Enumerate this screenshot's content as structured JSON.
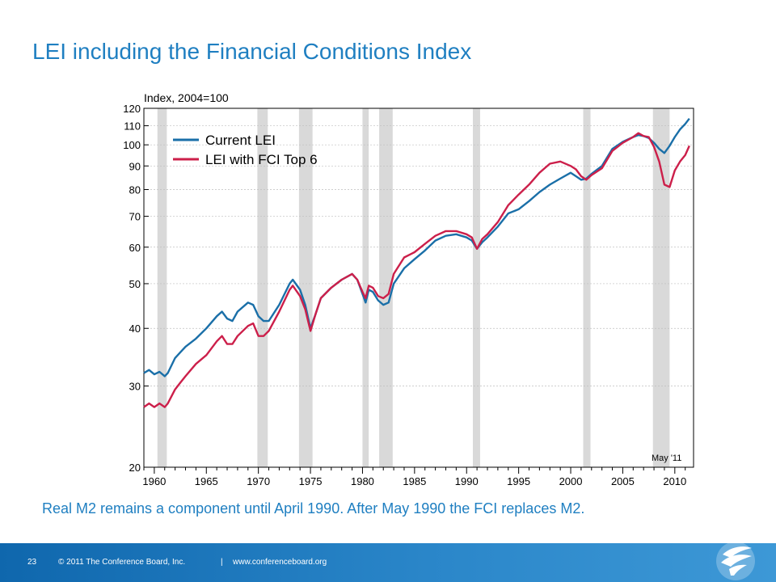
{
  "slide": {
    "title": "LEI including the Financial Conditions Index",
    "caption": "Real M2 remains a component until April 1990. After May 1990 the FCI replaces M2."
  },
  "footer": {
    "page_number": "23",
    "copyright": "© 2011 The Conference Board, Inc.",
    "separator": "|",
    "url": "www.conferenceboard.org"
  },
  "colors": {
    "accent": "#1f7fc1",
    "current_lei": "#1a6fa8",
    "lei_fci": "#cc1f4a",
    "recession": "#d9d9d9"
  },
  "chart_data": {
    "type": "line",
    "ylabel": "Index, 2004=100",
    "y_scale": "log",
    "ylim": [
      20,
      120
    ],
    "xlim": [
      1959,
      2011.8
    ],
    "y_ticks": [
      20,
      30,
      40,
      50,
      60,
      70,
      80,
      90,
      100,
      110,
      120
    ],
    "x_ticks": [
      1960,
      1965,
      1970,
      1975,
      1980,
      1985,
      1990,
      1995,
      2000,
      2005,
      2010
    ],
    "annotation": "May '11",
    "legend_position": "top-left",
    "recessions": [
      [
        1960.3,
        1961.2
      ],
      [
        1969.9,
        1970.9
      ],
      [
        1973.9,
        1975.2
      ],
      [
        1980.0,
        1980.6
      ],
      [
        1981.6,
        1982.9
      ],
      [
        1990.6,
        1991.3
      ],
      [
        2001.2,
        2001.9
      ],
      [
        2007.9,
        2009.5
      ]
    ],
    "series": [
      {
        "name": "Current LEI",
        "color": "#1a6fa8",
        "x": [
          1959.0,
          1959.5,
          1960.0,
          1960.5,
          1961.0,
          1961.3,
          1962.0,
          1962.5,
          1963.0,
          1964.0,
          1965.0,
          1966.0,
          1966.5,
          1967.0,
          1967.5,
          1968.0,
          1969.0,
          1969.5,
          1970.0,
          1970.5,
          1971.0,
          1972.0,
          1973.0,
          1973.3,
          1974.0,
          1974.5,
          1975.0,
          1975.5,
          1976.0,
          1977.0,
          1978.0,
          1979.0,
          1979.5,
          1980.0,
          1980.3,
          1980.6,
          1981.0,
          1981.5,
          1982.0,
          1982.5,
          1983.0,
          1984.0,
          1985.0,
          1986.0,
          1987.0,
          1988.0,
          1989.0,
          1990.0,
          1990.5,
          1991.0,
          1991.5,
          1992.0,
          1993.0,
          1994.0,
          1995.0,
          1996.0,
          1997.0,
          1998.0,
          1999.0,
          2000.0,
          2000.5,
          2001.0,
          2001.5,
          2002.0,
          2003.0,
          2004.0,
          2005.0,
          2006.0,
          2006.5,
          2007.0,
          2007.5,
          2008.0,
          2008.5,
          2009.0,
          2009.5,
          2010.0,
          2010.5,
          2011.0,
          2011.4
        ],
        "values": [
          32.0,
          32.5,
          31.8,
          32.2,
          31.5,
          32.0,
          34.5,
          35.5,
          36.5,
          38.0,
          40.0,
          42.5,
          43.5,
          42.0,
          41.5,
          43.5,
          45.5,
          45.0,
          42.5,
          41.5,
          41.5,
          45.0,
          50.0,
          51.0,
          48.5,
          45.0,
          40.0,
          43.0,
          46.5,
          49.0,
          51.0,
          52.5,
          51.0,
          47.5,
          45.5,
          48.5,
          48.0,
          46.0,
          45.0,
          45.5,
          50.0,
          54.0,
          56.5,
          59.0,
          62.0,
          63.5,
          64.0,
          63.0,
          62.0,
          59.5,
          61.5,
          63.0,
          66.5,
          71.0,
          72.5,
          75.5,
          79.0,
          82.0,
          84.5,
          87.0,
          85.5,
          84.0,
          84.5,
          86.5,
          90.0,
          98.0,
          101.5,
          104.0,
          105.0,
          104.5,
          103.5,
          101.0,
          98.0,
          96.0,
          99.5,
          104.0,
          108.0,
          111.0,
          114.0
        ]
      },
      {
        "name": "LEI with FCI Top 6",
        "color": "#cc1f4a",
        "x": [
          1959.0,
          1959.5,
          1960.0,
          1960.5,
          1961.0,
          1961.3,
          1962.0,
          1962.5,
          1963.0,
          1964.0,
          1965.0,
          1966.0,
          1966.5,
          1967.0,
          1967.5,
          1968.0,
          1969.0,
          1969.5,
          1970.0,
          1970.5,
          1971.0,
          1972.0,
          1973.0,
          1973.3,
          1974.0,
          1974.5,
          1975.0,
          1975.5,
          1976.0,
          1977.0,
          1978.0,
          1979.0,
          1979.5,
          1980.0,
          1980.3,
          1980.6,
          1981.0,
          1981.5,
          1982.0,
          1982.5,
          1983.0,
          1984.0,
          1985.0,
          1986.0,
          1987.0,
          1988.0,
          1989.0,
          1990.0,
          1990.5,
          1991.0,
          1991.5,
          1992.0,
          1993.0,
          1994.0,
          1995.0,
          1996.0,
          1997.0,
          1998.0,
          1999.0,
          2000.0,
          2000.5,
          2001.0,
          2001.5,
          2002.0,
          2003.0,
          2004.0,
          2005.0,
          2006.0,
          2006.5,
          2007.0,
          2007.5,
          2008.0,
          2008.5,
          2009.0,
          2009.5,
          2010.0,
          2010.5,
          2011.0,
          2011.4
        ],
        "values": [
          27.0,
          27.5,
          27.0,
          27.5,
          27.0,
          27.5,
          29.5,
          30.5,
          31.5,
          33.5,
          35.0,
          37.5,
          38.5,
          37.0,
          37.0,
          38.5,
          40.5,
          41.0,
          38.5,
          38.5,
          39.5,
          43.5,
          48.5,
          49.5,
          47.0,
          44.0,
          39.5,
          43.0,
          46.5,
          49.0,
          51.0,
          52.5,
          51.0,
          48.0,
          46.5,
          49.5,
          49.0,
          47.0,
          46.5,
          47.5,
          52.5,
          57.0,
          58.5,
          61.0,
          63.5,
          65.0,
          65.0,
          64.0,
          63.0,
          59.5,
          62.5,
          64.0,
          68.0,
          74.0,
          78.0,
          82.0,
          87.0,
          91.0,
          92.0,
          90.0,
          88.5,
          85.5,
          84.0,
          86.0,
          89.0,
          97.0,
          101.0,
          104.0,
          106.0,
          104.5,
          104.0,
          99.0,
          92.0,
          82.0,
          81.0,
          88.0,
          92.0,
          95.0,
          99.5
        ]
      }
    ]
  }
}
